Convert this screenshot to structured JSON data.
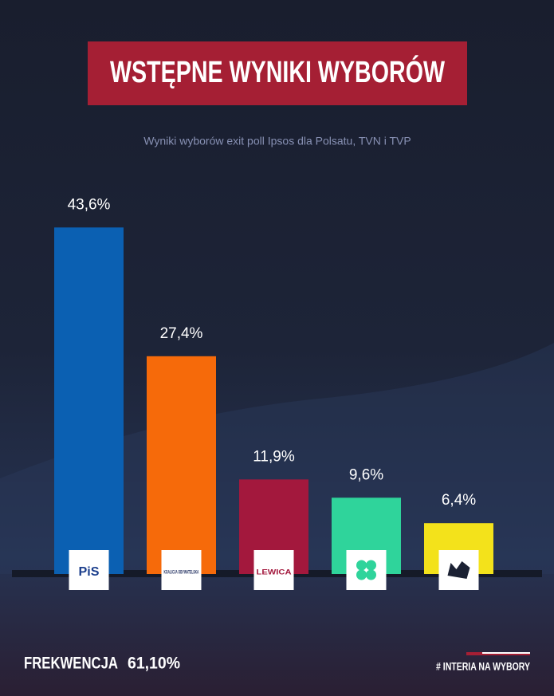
{
  "chart_data": {
    "type": "bar",
    "title": "WSTĘPNE WYNIKI WYBORÓW",
    "subtitle": "Wyniki wyborów exit poll Ipsos dla Polsatu, TVN i TVP",
    "categories": [
      "PiS",
      "KOALICJA OBYWATELSKA",
      "LEWICA",
      null,
      null
    ],
    "values": [
      43.6,
      27.4,
      11.9,
      9.6,
      6.4
    ],
    "value_labels": [
      "43,6%",
      "27,4%",
      "11,9%",
      "9,6%",
      "6,4%"
    ],
    "colors": [
      "#0b60b2",
      "#f66a0a",
      "#a3183d",
      "#2fd49b",
      "#f3e21b"
    ]
  },
  "footer": {
    "turnout_label": "FREKWENCJA",
    "turnout_value": "61,10%",
    "brand": "# INTERIA NA WYBORY"
  }
}
